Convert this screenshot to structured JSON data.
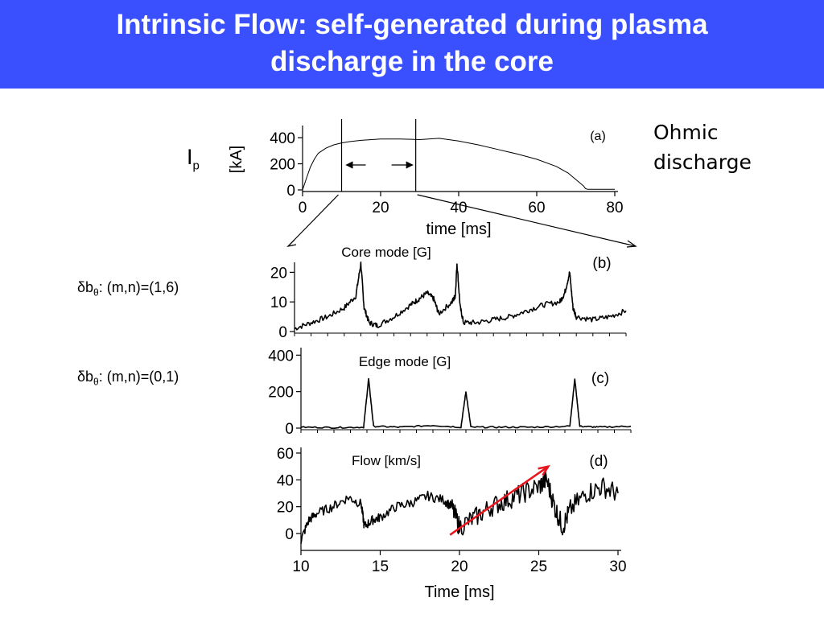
{
  "slide": {
    "title_line1": "Intrinsic Flow: self-generated during plasma",
    "title_line2": "discharge in the core",
    "title_bg": "#3a50ff",
    "side_note_line1": "Ohmic",
    "side_note_line2": "discharge",
    "ip_symbol": "I",
    "ip_subscript": "p",
    "mode_b_delta": "δ",
    "mode_b_b": "b",
    "mode_b_sub": "θ",
    "mode_b_rest": ": (m,n)=(1,6)",
    "mode_c_delta": "δ",
    "mode_c_b": "b",
    "mode_c_sub": "θ",
    "mode_c_rest": ": (m,n)=(0,1)"
  },
  "chart_data": [
    {
      "type": "line",
      "panel": "(a)",
      "ylabel": "[kA]",
      "xlabel": "time [ms]",
      "xlim": [
        0,
        80
      ],
      "ylim": [
        0,
        450
      ],
      "xticks": [
        0,
        20,
        40,
        60,
        80
      ],
      "yticks": [
        0,
        200,
        400
      ],
      "series": [
        {
          "x": [
            0,
            1,
            2,
            3,
            4,
            6,
            8,
            10,
            12,
            15,
            20,
            25,
            30,
            35,
            40,
            45,
            50,
            55,
            60,
            65,
            68,
            70,
            72,
            72.5,
            73,
            76,
            80
          ],
          "y": [
            0,
            90,
            175,
            235,
            280,
            320,
            345,
            360,
            370,
            380,
            390,
            390,
            385,
            395,
            375,
            345,
            310,
            275,
            235,
            180,
            130,
            80,
            30,
            10,
            5,
            5,
            5
          ]
        }
      ],
      "markers_x": [
        10,
        29
      ],
      "color": "#000000"
    },
    {
      "type": "line",
      "panel": "(b)",
      "title": "Core mode [G]",
      "xlim": [
        10,
        30
      ],
      "ylim": [
        0,
        25
      ],
      "yticks": [
        0,
        10,
        20
      ],
      "series": [
        {
          "x": [
            10,
            11,
            12,
            13,
            13.7,
            14,
            14.2,
            14.5,
            15,
            16,
            17,
            17.5,
            18,
            18.4,
            18.7,
            19.5,
            19.7,
            19.8,
            20,
            20.2,
            21,
            22,
            23,
            24,
            25,
            26,
            26.3,
            26.6,
            26.8,
            27,
            28,
            29,
            30
          ],
          "y": [
            1,
            3,
            5,
            8,
            12,
            23,
            8,
            3,
            2,
            5,
            9,
            11,
            13,
            11,
            6,
            10,
            12,
            23,
            8,
            3,
            3,
            4,
            5,
            7,
            9,
            10,
            13,
            20,
            8,
            5,
            4,
            5,
            7
          ]
        }
      ],
      "color": "#000000"
    },
    {
      "type": "line",
      "panel": "(c)",
      "title": "Edge mode [G]",
      "xlim": [
        10,
        30
      ],
      "ylim": [
        0,
        450
      ],
      "yticks": [
        0,
        200,
        400
      ],
      "series": [
        {
          "x": [
            10,
            12,
            13.8,
            14.1,
            14.4,
            16,
            18,
            19.7,
            20,
            20.3,
            22,
            24,
            26.3,
            26.6,
            26.9,
            28,
            30
          ],
          "y": [
            5,
            3,
            5,
            270,
            10,
            5,
            15,
            5,
            200,
            5,
            5,
            5,
            10,
            270,
            10,
            5,
            10
          ]
        }
      ],
      "color": "#000000"
    },
    {
      "type": "line",
      "panel": "(d)",
      "title": "Flow [km/s]",
      "xlabel": "Time [ms]",
      "xlim": [
        10,
        30
      ],
      "ylim": [
        -10,
        60
      ],
      "xticks": [
        10,
        15,
        20,
        25,
        30
      ],
      "yticks": [
        0,
        20,
        40,
        60
      ],
      "series": [
        {
          "x": [
            10,
            10.5,
            11,
            12,
            13,
            13.8,
            14,
            14.5,
            15,
            16,
            17,
            18,
            19,
            19.5,
            20,
            21,
            22,
            23,
            24,
            25,
            25.5,
            26,
            26.5,
            27,
            28,
            29,
            30
          ],
          "y": [
            -5,
            10,
            15,
            20,
            27,
            22,
            5,
            10,
            12,
            20,
            23,
            28,
            25,
            20,
            5,
            12,
            20,
            25,
            30,
            35,
            40,
            20,
            5,
            18,
            30,
            35,
            30
          ]
        },
        {
          "name": "trend",
          "x": [
            19.4,
            25.6
          ],
          "y": [
            -1,
            50
          ]
        }
      ],
      "colors": [
        "#000000",
        "#e8141e"
      ]
    }
  ]
}
